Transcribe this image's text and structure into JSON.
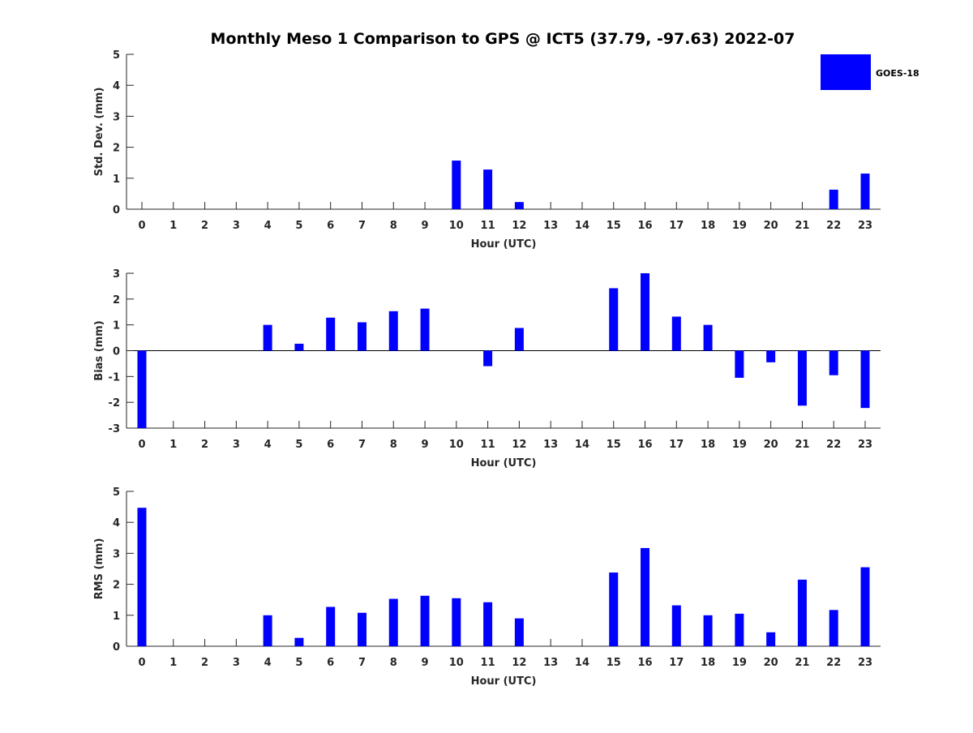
{
  "title": "Monthly Meso 1 Comparison to GPS @ ICT5 (37.79, -97.63) 2022-07",
  "legend": {
    "label": "GOES-18",
    "placement": "top-right"
  },
  "colors": {
    "bar": "#0000ff",
    "axis": "#262626",
    "zero_line": "#000000"
  },
  "chart_data": [
    {
      "type": "bar",
      "title": "Monthly Meso 1 Comparison to GPS @ ICT5 (37.79, -97.63) 2022-07",
      "xlabel": "Hour (UTC)",
      "ylabel": "Std. Dev. (mm)",
      "categories": [
        "0",
        "1",
        "2",
        "3",
        "4",
        "5",
        "6",
        "7",
        "8",
        "9",
        "10",
        "11",
        "12",
        "13",
        "14",
        "15",
        "16",
        "17",
        "18",
        "19",
        "20",
        "21",
        "22",
        "23"
      ],
      "series": [
        {
          "name": "GOES-18",
          "values": [
            0,
            0,
            0,
            0,
            0,
            0,
            0,
            0,
            0,
            0,
            1.57,
            1.28,
            0.23,
            0,
            0,
            0,
            0,
            0,
            0,
            0,
            0,
            0,
            0.63,
            1.15
          ]
        }
      ],
      "ylim": [
        0,
        5
      ],
      "yticks": [
        0,
        1,
        2,
        3,
        4,
        5
      ],
      "grid": false
    },
    {
      "type": "bar",
      "xlabel": "Hour (UTC)",
      "ylabel": "Bias (mm)",
      "categories": [
        "0",
        "1",
        "2",
        "3",
        "4",
        "5",
        "6",
        "7",
        "8",
        "9",
        "10",
        "11",
        "12",
        "13",
        "14",
        "15",
        "16",
        "17",
        "18",
        "19",
        "20",
        "21",
        "22",
        "23"
      ],
      "series": [
        {
          "name": "GOES-18",
          "values": [
            -3.0,
            0,
            0,
            0,
            1.0,
            0.27,
            1.28,
            1.1,
            1.53,
            1.63,
            0,
            -0.6,
            0.88,
            0,
            0,
            2.42,
            3.0,
            1.32,
            1.0,
            -1.05,
            -0.45,
            -2.13,
            -0.95,
            -2.22
          ]
        }
      ],
      "ylim": [
        -3,
        3
      ],
      "yticks": [
        -3,
        -2,
        -1,
        0,
        1,
        2,
        3
      ],
      "zero_line": true,
      "grid": false
    },
    {
      "type": "bar",
      "xlabel": "Hour (UTC)",
      "ylabel": "RMS (mm)",
      "categories": [
        "0",
        "1",
        "2",
        "3",
        "4",
        "5",
        "6",
        "7",
        "8",
        "9",
        "10",
        "11",
        "12",
        "13",
        "14",
        "15",
        "16",
        "17",
        "18",
        "19",
        "20",
        "21",
        "22",
        "23"
      ],
      "series": [
        {
          "name": "GOES-18",
          "values": [
            4.47,
            0,
            0,
            0,
            1.0,
            0.27,
            1.27,
            1.08,
            1.53,
            1.63,
            1.55,
            1.42,
            0.9,
            0,
            0,
            2.38,
            3.17,
            1.32,
            1.0,
            1.05,
            0.45,
            2.15,
            1.17,
            2.55
          ]
        }
      ],
      "ylim": [
        0,
        5
      ],
      "yticks": [
        0,
        1,
        2,
        3,
        4,
        5
      ],
      "grid": false
    }
  ]
}
